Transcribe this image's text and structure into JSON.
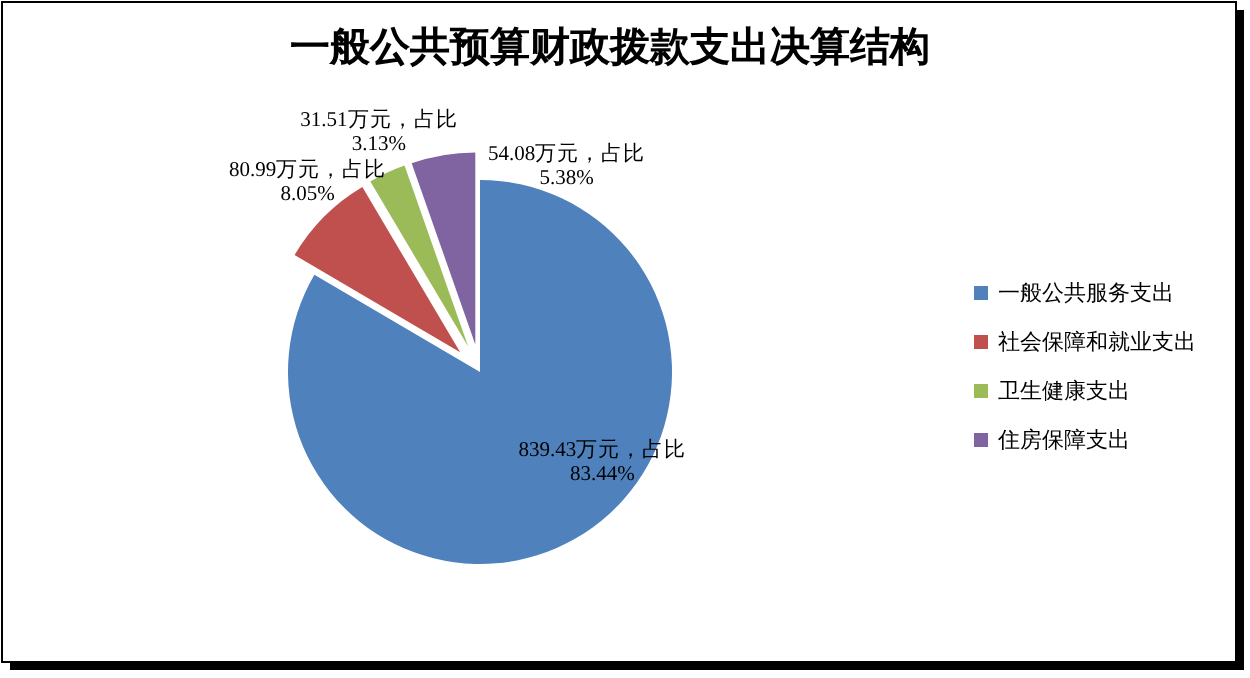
{
  "chart_data": {
    "type": "pie",
    "title": "一般公共预算财政拨款支出决算结构",
    "categories": [
      "一般公共服务支出",
      "社会保障和就业支出",
      "卫生健康支出",
      "住房保障支出"
    ],
    "values": [
      839.43,
      80.99,
      31.51,
      54.08
    ],
    "colors": [
      "#4f81bd",
      "#c0504d",
      "#9bbb59",
      "#8064a2"
    ],
    "value_labels": [
      "839.43万元，占比\n83.44%",
      "80.99万元，占比\n8.05%",
      "31.51万元，占比\n3.13%",
      "54.08万元，占比\n5.38%"
    ],
    "legend": "right"
  }
}
